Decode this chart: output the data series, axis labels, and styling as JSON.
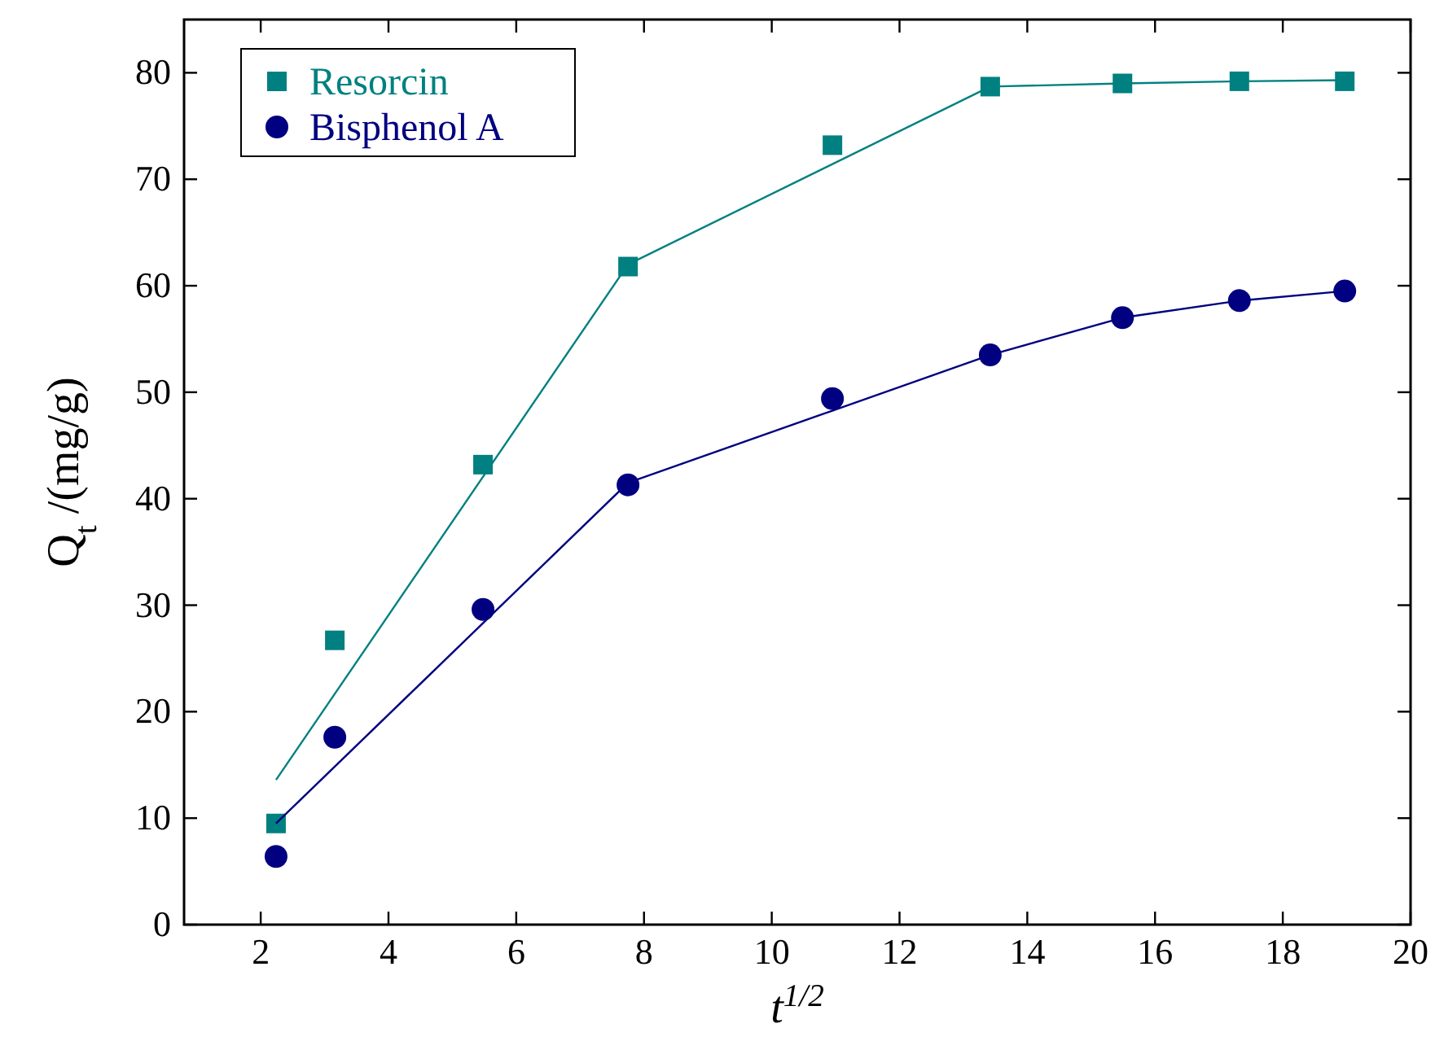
{
  "chart_data": {
    "type": "scatter",
    "xlabel": "t$^{1/2}$",
    "ylabel": "Q$_{t}$ /(mg/g)",
    "xlim": [
      0.8,
      20
    ],
    "xticks": [
      2,
      4,
      6,
      8,
      10,
      12,
      14,
      16,
      18,
      20
    ],
    "ylim": [
      0,
      85
    ],
    "yticks": [
      0,
      10,
      20,
      30,
      40,
      50,
      60,
      70,
      80
    ],
    "legend": "top left",
    "grid": false,
    "x": [
      2.24,
      3.16,
      5.48,
      7.75,
      10.95,
      13.42,
      15.49,
      17.32,
      18.97
    ],
    "series": [
      {
        "name": "Resorcin",
        "color": "#008080",
        "marker": "square",
        "values": [
          9.5,
          26.7,
          43.2,
          61.8,
          73.2,
          78.7,
          79.0,
          79.2,
          79.2
        ]
      },
      {
        "name": "Bisphenol A",
        "color": "#000080",
        "marker": "circle",
        "values": [
          6.4,
          17.6,
          29.6,
          41.3,
          49.4,
          53.5,
          57.0,
          58.6,
          59.5
        ]
      },
      {
        "type": "line",
        "color": "#008080",
        "marker": "none",
        "x": [
          2.24,
          7.75,
          13.42,
          15.49,
          17.32,
          18.97
        ],
        "values": [
          13.6,
          62.0,
          78.7,
          79.0,
          79.2,
          79.3
        ]
      },
      {
        "type": "line",
        "color": "#000080",
        "marker": "none",
        "x": [
          2.24,
          7.75,
          13.42,
          15.49,
          17.32,
          18.97
        ],
        "values": [
          9.5,
          41.5,
          53.5,
          57.0,
          58.6,
          59.5
        ]
      }
    ]
  }
}
